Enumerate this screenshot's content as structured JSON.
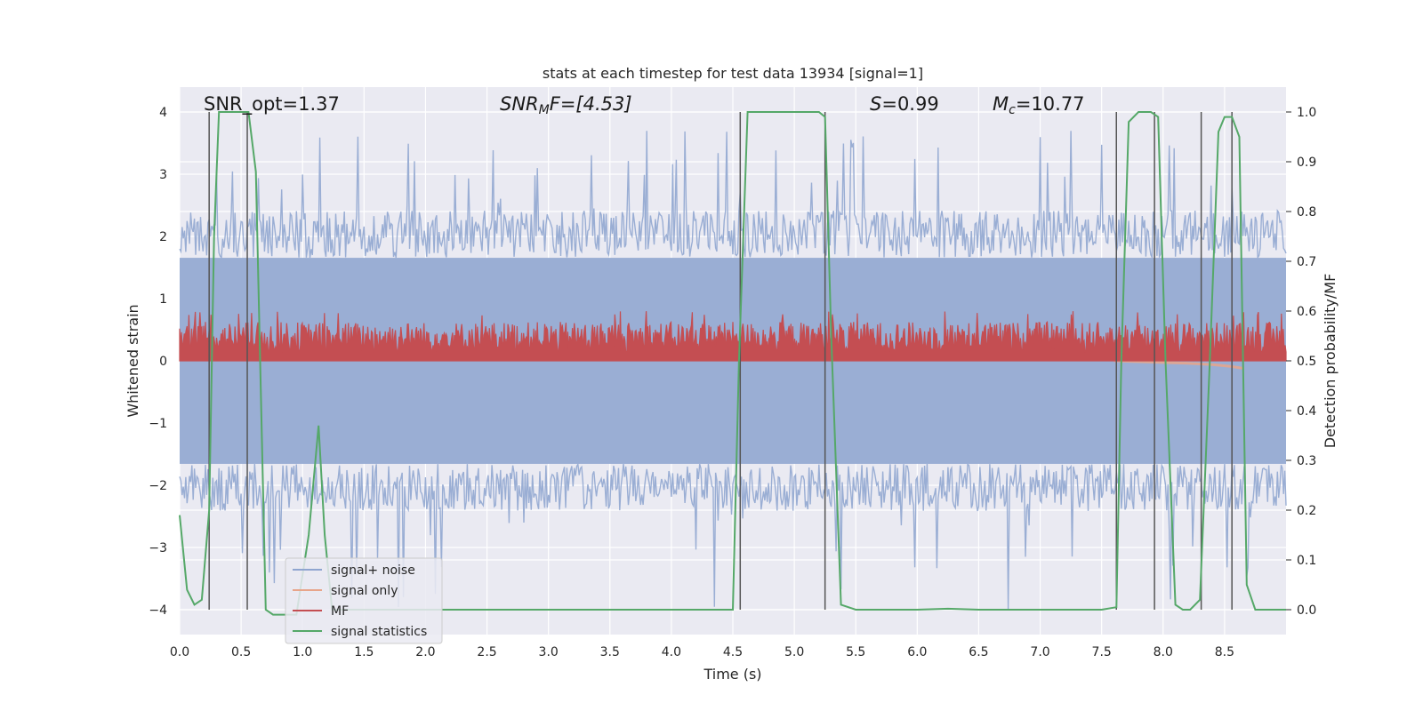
{
  "chart_data": {
    "type": "line",
    "title": "stats at each timestep for test data 13934 [signal=1]",
    "xlabel": "Time (s)",
    "ylabel_left": "Whitened strain",
    "ylabel_right": "Detection probability/MF",
    "xlim": [
      0.0,
      9.0
    ],
    "ylim_left": [
      -4.4,
      4.4
    ],
    "ylim_right": [
      -0.05,
      1.05
    ],
    "x_ticks": [
      0.0,
      0.5,
      1.0,
      1.5,
      2.0,
      2.5,
      3.0,
      3.5,
      4.0,
      4.5,
      5.0,
      5.5,
      6.0,
      6.5,
      7.0,
      7.5,
      8.0,
      8.5
    ],
    "x_tick_labels": [
      "0.0",
      "0.5",
      "1.0",
      "1.5",
      "2.0",
      "2.5",
      "3.0",
      "3.5",
      "4.0",
      "4.5",
      "5.0",
      "5.5",
      "6.0",
      "6.5",
      "7.0",
      "7.5",
      "8.0",
      "8.5"
    ],
    "y_left_ticks": [
      -4,
      -3,
      -2,
      -1,
      0,
      1,
      2,
      3,
      4
    ],
    "y_left_tick_labels": [
      "−4",
      "−3",
      "−2",
      "−1",
      "0",
      "1",
      "2",
      "3",
      "4"
    ],
    "y_right_ticks": [
      0.0,
      0.1,
      0.2,
      0.3,
      0.4,
      0.5,
      0.6,
      0.7,
      0.8,
      0.9,
      1.0
    ],
    "y_right_tick_labels": [
      "0.0",
      "0.1",
      "0.2",
      "0.3",
      "0.4",
      "0.5",
      "0.6",
      "0.7",
      "0.8",
      "0.9",
      "1.0"
    ],
    "annotations": {
      "snr_opt": "SNR_opt=1.37",
      "snr_mf_name": "SNR",
      "snr_mf_sub": "M",
      "snr_mf_rest": "F=[4.53]",
      "s_name": "S",
      "s_rest": "=0.99",
      "mc_name": "M",
      "mc_sub": "c",
      "mc_rest": "=10.77"
    },
    "legend": {
      "location": "lower-left",
      "entries": [
        {
          "label": "signal+ noise",
          "color": "#8fa5d0"
        },
        {
          "label": "signal only",
          "color": "#e8a58a"
        },
        {
          "label": "MF",
          "color": "#c44e52"
        },
        {
          "label": "signal statistics",
          "color": "#55a868"
        }
      ]
    },
    "series": [
      {
        "name": "signal+ noise",
        "axis": "left",
        "style": "noise band",
        "envelope_typical": [
          -2.3,
          2.3
        ],
        "envelope_max": [
          -4.0,
          3.7
        ]
      },
      {
        "name": "signal only",
        "axis": "left",
        "x": [
          7.6,
          7.9,
          8.2,
          8.4,
          8.55,
          8.65
        ],
        "y": [
          0.0,
          -0.02,
          -0.04,
          -0.06,
          -0.09,
          -0.12
        ]
      },
      {
        "name": "MF",
        "axis": "right",
        "style": "noise band",
        "envelope_typical": [
          0.5,
          0.57
        ],
        "envelope_max": [
          0.5,
          0.6
        ]
      },
      {
        "name": "signal statistics",
        "axis": "right",
        "x": [
          0.0,
          0.06,
          0.12,
          0.18,
          0.24,
          0.28,
          0.32,
          0.4,
          0.48,
          0.56,
          0.62,
          0.7,
          0.76,
          0.85,
          0.95,
          1.05,
          1.13,
          1.18,
          1.24,
          1.4,
          2.0,
          3.0,
          4.0,
          4.5,
          4.55,
          4.62,
          4.7,
          5.0,
          5.2,
          5.25,
          5.3,
          5.38,
          5.5,
          6.0,
          6.25,
          6.5,
          7.0,
          7.5,
          7.62,
          7.66,
          7.72,
          7.8,
          7.9,
          7.96,
          8.02,
          8.1,
          8.16,
          8.22,
          8.3,
          8.38,
          8.45,
          8.5,
          8.56,
          8.62,
          8.68,
          8.75,
          8.85,
          9.0
        ],
        "y": [
          0.19,
          0.04,
          0.01,
          0.02,
          0.2,
          0.75,
          1.0,
          1.0,
          1.0,
          1.0,
          0.88,
          0.0,
          -0.01,
          -0.01,
          -0.01,
          0.15,
          0.37,
          0.15,
          0.0,
          0.0,
          0.0,
          0.0,
          0.0,
          0.0,
          0.5,
          1.0,
          1.0,
          1.0,
          1.0,
          0.99,
          0.55,
          0.01,
          0.0,
          0.0,
          0.002,
          0.0,
          0.0,
          0.0,
          0.005,
          0.5,
          0.98,
          1.0,
          1.0,
          0.99,
          0.5,
          0.01,
          0.0,
          0.0,
          0.02,
          0.5,
          0.96,
          0.99,
          0.99,
          0.95,
          0.05,
          0.0,
          0.0,
          0.0
        ]
      }
    ],
    "vertical_markers": [
      0.24,
      0.55,
      4.56,
      5.25,
      7.62,
      7.93,
      8.31,
      8.56
    ]
  }
}
